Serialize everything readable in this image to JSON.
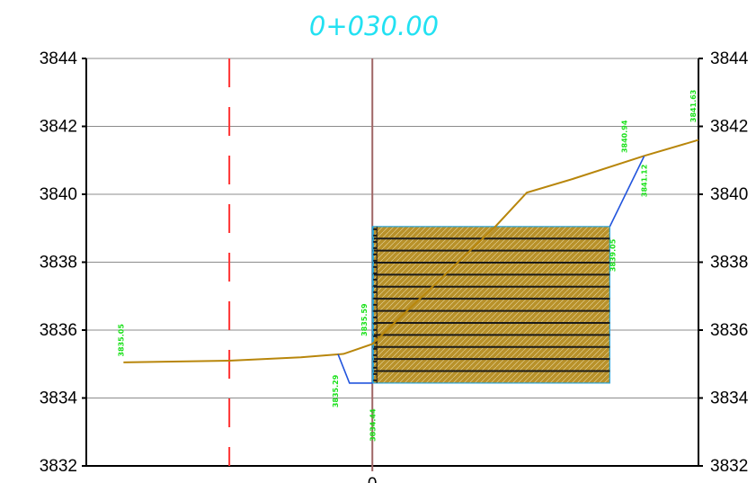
{
  "chart_data": {
    "type": "line",
    "title": "0+030.00",
    "y_ticks": [
      "3844",
      "3842",
      "3840",
      "3838",
      "3836",
      "3834",
      "3832"
    ],
    "x_ticks": [
      "0"
    ],
    "ylim": [
      3832,
      3844
    ],
    "xlim": [
      -100,
      114
    ],
    "centerline_x": 0,
    "offset_line_x": -50,
    "grid": true,
    "colors": {
      "title": "#22e1f2",
      "ground": "#b8860b",
      "design": "#2255dd",
      "centerline": "#a06666",
      "offset_line": "#ff3333",
      "labels": "#16e016",
      "fill": "#b8912a"
    },
    "ground_line": [
      {
        "x": -87,
        "y": 3835.05
      },
      {
        "x": -50,
        "y": 3835.1
      },
      {
        "x": -25,
        "y": 3835.2
      },
      {
        "x": -10,
        "y": 3835.3
      },
      {
        "x": 0,
        "y": 3835.59
      },
      {
        "x": 43,
        "y": 3839.05
      },
      {
        "x": 54,
        "y": 3840.05
      },
      {
        "x": 70,
        "y": 3840.45
      },
      {
        "x": 95,
        "y": 3841.13
      },
      {
        "x": 114,
        "y": 3841.6
      }
    ],
    "design_line_left": [
      {
        "x": -12,
        "y": 3835.29
      },
      {
        "x": -8,
        "y": 3834.44
      },
      {
        "x": 0,
        "y": 3834.44
      }
    ],
    "design_line_right": [
      {
        "x": 83,
        "y": 3839.05
      },
      {
        "x": 95,
        "y": 3841.12
      }
    ],
    "fill_block": {
      "x0": 0,
      "x1": 83,
      "y0": 3834.44,
      "y1": 3839.05,
      "layers": 13
    },
    "elevation_labels": [
      {
        "text": "3835.05",
        "x": -87,
        "y": 3835.7
      },
      {
        "text": "3835.29",
        "x": -12,
        "y": 3834.2
      },
      {
        "text": "3835.59",
        "x": -2,
        "y": 3836.3
      },
      {
        "text": "3834.44",
        "x": 1,
        "y": 3833.2
      },
      {
        "text": "3839.05",
        "x": 85,
        "y": 3838.2
      },
      {
        "text": "3840.94",
        "x": 89,
        "y": 3841.7
      },
      {
        "text": "3841.12",
        "x": 96,
        "y": 3840.4
      },
      {
        "text": "3841.63",
        "x": 113,
        "y": 3842.6
      }
    ]
  }
}
